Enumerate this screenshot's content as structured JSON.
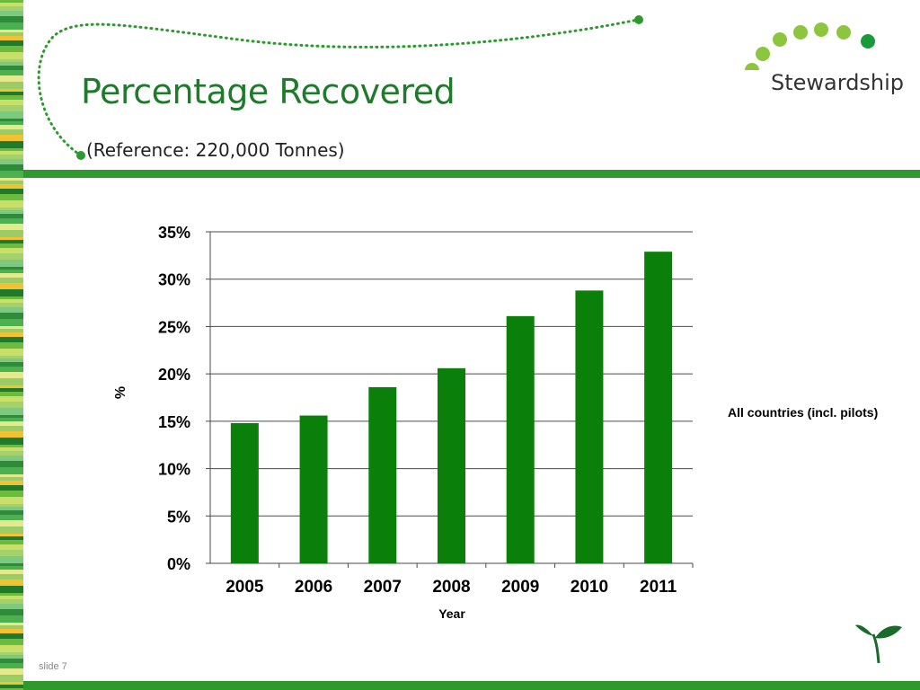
{
  "slide": {
    "title": "Percentage Recovered",
    "subtitle": "(Reference: 220,000 Tonnes)",
    "note": "All countries (incl. pilots)",
    "slide_label": "slide 7",
    "logo_text": "Stewardship"
  },
  "colors": {
    "bar": "#0a800a",
    "title": "#1f7a2c",
    "rule": "#2e9a2e",
    "logo_dot_light": "#8cc63f",
    "logo_dot_dark": "#1a9a3a"
  },
  "chart_data": {
    "type": "bar",
    "categories": [
      "2005",
      "2006",
      "2007",
      "2008",
      "2009",
      "2010",
      "2011"
    ],
    "values": [
      14.8,
      15.6,
      18.6,
      20.6,
      26.1,
      28.8,
      32.9
    ],
    "ylim": [
      0,
      35
    ],
    "yticks": [
      0,
      5,
      10,
      15,
      20,
      25,
      30,
      35
    ],
    "ytick_labels": [
      "0%",
      "5%",
      "10%",
      "15%",
      "20%",
      "25%",
      "30%",
      "35%"
    ],
    "xlabel": "Year",
    "ylabel": "%",
    "grid": true
  }
}
